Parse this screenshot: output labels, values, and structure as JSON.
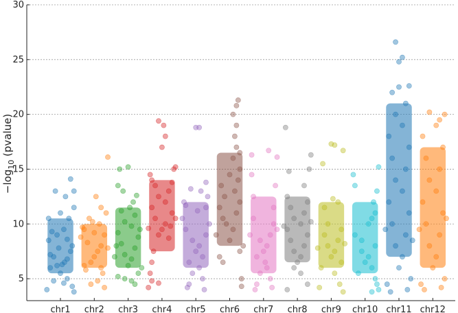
{
  "chart_data": {
    "type": "scatter",
    "title": "",
    "xlabel": "",
    "ylabel": {
      "base": "−log",
      "sub": "10",
      "rest": " (pvalue)"
    },
    "ylim": [
      3,
      30
    ],
    "yticks": [
      5,
      10,
      15,
      20,
      25,
      30
    ],
    "grid": "horizontal dotted",
    "legend": "none",
    "categories": [
      "chr1",
      "chr2",
      "chr3",
      "chr4",
      "chr5",
      "chr6",
      "chr7",
      "chr8",
      "chr9",
      "chr10",
      "chr11",
      "chr12"
    ],
    "series": [
      {
        "label": "chr1",
        "color": "#1f77b4",
        "points": [
          [
            0.05,
            6.3
          ],
          [
            0.12,
            6.5
          ],
          [
            -0.1,
            6.2
          ],
          [
            0.2,
            6.8
          ],
          [
            -0.2,
            7.0
          ],
          [
            0.3,
            7.5
          ],
          [
            -0.3,
            6.0
          ],
          [
            0.35,
            8.0
          ],
          [
            -0.35,
            8.5
          ],
          [
            0.1,
            9.5
          ],
          [
            -0.1,
            9.0
          ],
          [
            0.25,
            10.5
          ],
          [
            -0.25,
            9.3
          ],
          [
            0.4,
            11.5
          ],
          [
            0.15,
            12.5
          ],
          [
            0.4,
            13.0
          ],
          [
            -0.15,
            13.0
          ],
          [
            0.3,
            14.1
          ],
          [
            -0.35,
            10.5
          ],
          [
            0.0,
            5.5
          ],
          [
            0.2,
            5.0
          ],
          [
            -0.2,
            4.8
          ],
          [
            0.35,
            4.3
          ],
          [
            -0.4,
            4.0
          ],
          [
            0.1,
            4.6
          ],
          [
            0.4,
            3.8
          ],
          [
            -0.05,
            7.8
          ],
          [
            0.2,
            8.6
          ],
          [
            -0.3,
            7.2
          ],
          [
            0.0,
            11.0
          ]
        ]
      },
      {
        "label": "chr2",
        "color": "#ff7f0e",
        "points": [
          [
            0.0,
            7.0
          ],
          [
            0.1,
            7.5
          ],
          [
            -0.1,
            6.5
          ],
          [
            0.2,
            8.0
          ],
          [
            -0.2,
            8.3
          ],
          [
            0.3,
            9.0
          ],
          [
            -0.3,
            9.5
          ],
          [
            0.15,
            10.0
          ],
          [
            -0.15,
            10.5
          ],
          [
            0.35,
            11.0
          ],
          [
            -0.35,
            9.7
          ],
          [
            0.05,
            12.5
          ],
          [
            0.2,
            11.5
          ],
          [
            0.4,
            16.1
          ],
          [
            -0.25,
            5.8
          ],
          [
            0.25,
            5.5
          ],
          [
            0.1,
            4.8
          ],
          [
            -0.1,
            4.5
          ],
          [
            0.3,
            4.2
          ],
          [
            -0.3,
            6.2
          ],
          [
            0.4,
            7.8
          ],
          [
            -0.4,
            8.8
          ],
          [
            0.0,
            9.2
          ],
          [
            0.2,
            6.0
          ],
          [
            -0.05,
            10.2
          ]
        ]
      },
      {
        "label": "chr3",
        "color": "#2ca02c",
        "points": [
          [
            0.0,
            6.2
          ],
          [
            0.1,
            6.8
          ],
          [
            -0.1,
            7.2
          ],
          [
            0.2,
            7.8
          ],
          [
            -0.2,
            8.2
          ],
          [
            0.3,
            8.8
          ],
          [
            -0.3,
            9.2
          ],
          [
            0.1,
            9.8
          ],
          [
            -0.1,
            10.2
          ],
          [
            0.2,
            10.8
          ],
          [
            -0.2,
            11.2
          ],
          [
            0.15,
            12.0
          ],
          [
            -0.15,
            13.0
          ],
          [
            0.25,
            12.6
          ],
          [
            -0.3,
            13.5
          ],
          [
            0.0,
            15.2
          ],
          [
            -0.25,
            15.0
          ],
          [
            0.3,
            5.5
          ],
          [
            -0.3,
            5.2
          ],
          [
            0.1,
            4.8
          ],
          [
            0.2,
            4.5
          ],
          [
            -0.1,
            5.0
          ],
          [
            0.4,
            6.0
          ],
          [
            -0.4,
            7.0
          ],
          [
            0.35,
            9.5
          ],
          [
            -0.35,
            8.0
          ],
          [
            0.05,
            11.5
          ]
        ]
      },
      {
        "label": "chr4",
        "color": "#d62728",
        "points": [
          [
            0.0,
            9.5
          ],
          [
            0.1,
            10.0
          ],
          [
            -0.1,
            9.0
          ],
          [
            0.2,
            8.7
          ],
          [
            -0.2,
            10.5
          ],
          [
            0.3,
            11.0
          ],
          [
            -0.3,
            11.5
          ],
          [
            0.1,
            12.0
          ],
          [
            -0.1,
            12.5
          ],
          [
            0.2,
            13.0
          ],
          [
            -0.2,
            13.5
          ],
          [
            0.3,
            13.8
          ],
          [
            -0.3,
            14.0
          ],
          [
            0.0,
            17.0
          ],
          [
            0.1,
            18.0
          ],
          [
            -0.1,
            19.4
          ],
          [
            0.05,
            19.0
          ],
          [
            0.35,
            15.0
          ],
          [
            -0.35,
            14.5
          ],
          [
            0.4,
            15.2
          ],
          [
            -0.25,
            7.5
          ],
          [
            -0.3,
            6.5
          ],
          [
            -0.35,
            5.5
          ],
          [
            -0.3,
            4.8
          ],
          [
            -0.4,
            4.2
          ],
          [
            -0.1,
            4.6
          ],
          [
            0.25,
            9.8
          ],
          [
            0.4,
            10.5
          ],
          [
            -0.4,
            9.6
          ]
        ]
      },
      {
        "label": "chr5",
        "color": "#9467bd",
        "points": [
          [
            0.0,
            7.5
          ],
          [
            0.1,
            8.0
          ],
          [
            -0.1,
            8.5
          ],
          [
            0.2,
            7.0
          ],
          [
            -0.2,
            6.5
          ],
          [
            0.3,
            9.0
          ],
          [
            -0.3,
            9.5
          ],
          [
            0.1,
            6.0
          ],
          [
            -0.1,
            5.5
          ],
          [
            0.2,
            5.0
          ],
          [
            -0.2,
            4.5
          ],
          [
            0.3,
            11.5
          ],
          [
            -0.3,
            11.7
          ],
          [
            0.35,
            12.5
          ],
          [
            -0.35,
            12.0
          ],
          [
            0.15,
            13.0
          ],
          [
            -0.15,
            13.2
          ],
          [
            0.3,
            13.8
          ],
          [
            0.0,
            18.8
          ],
          [
            0.1,
            18.8
          ],
          [
            -0.4,
            10.5
          ],
          [
            0.4,
            10.0
          ],
          [
            -0.25,
            4.2
          ],
          [
            0.25,
            4.0
          ],
          [
            0.05,
            11.2
          ]
        ]
      },
      {
        "label": "chr6",
        "color": "#8c564b",
        "points": [
          [
            0.0,
            8.5
          ],
          [
            0.1,
            9.5
          ],
          [
            -0.1,
            10.0
          ],
          [
            0.2,
            11.0
          ],
          [
            -0.2,
            10.5
          ],
          [
            0.3,
            12.0
          ],
          [
            -0.3,
            11.5
          ],
          [
            0.15,
            13.0
          ],
          [
            -0.15,
            12.5
          ],
          [
            0.25,
            14.0
          ],
          [
            -0.25,
            13.5
          ],
          [
            0.3,
            15.0
          ],
          [
            0.1,
            16.0
          ],
          [
            0.2,
            17.0
          ],
          [
            0.15,
            18.0
          ],
          [
            0.2,
            19.0
          ],
          [
            0.1,
            20.0
          ],
          [
            0.25,
            21.3
          ],
          [
            0.2,
            20.8
          ],
          [
            0.3,
            16.5
          ],
          [
            -0.3,
            7.0
          ],
          [
            -0.2,
            6.5
          ],
          [
            0.3,
            7.5
          ],
          [
            0.35,
            5.0
          ],
          [
            0.35,
            4.3
          ],
          [
            0.4,
            8.0
          ],
          [
            -0.4,
            9.0
          ],
          [
            0.0,
            14.5
          ]
        ]
      },
      {
        "label": "chr7",
        "color": "#e377c2",
        "points": [
          [
            0.0,
            7.5
          ],
          [
            0.1,
            8.0
          ],
          [
            -0.1,
            8.5
          ],
          [
            0.2,
            9.0
          ],
          [
            -0.2,
            7.0
          ],
          [
            0.3,
            10.0
          ],
          [
            -0.3,
            10.5
          ],
          [
            0.1,
            6.0
          ],
          [
            -0.1,
            5.5
          ],
          [
            0.2,
            5.0
          ],
          [
            -0.2,
            4.5
          ],
          [
            0.3,
            11.5
          ],
          [
            -0.3,
            12.5
          ],
          [
            0.35,
            13.5
          ],
          [
            -0.35,
            14.5
          ],
          [
            0.15,
            16.7
          ],
          [
            -0.35,
            16.3
          ],
          [
            0.4,
            16.1
          ],
          [
            0.4,
            9.5
          ],
          [
            -0.4,
            9.0
          ],
          [
            0.25,
            4.2
          ],
          [
            -0.25,
            4.0
          ],
          [
            0.05,
            6.5
          ]
        ]
      },
      {
        "label": "chr8",
        "color": "#7f7f7f",
        "points": [
          [
            0.0,
            6.5
          ],
          [
            0.1,
            7.0
          ],
          [
            -0.1,
            7.5
          ],
          [
            0.2,
            8.0
          ],
          [
            -0.2,
            8.5
          ],
          [
            0.3,
            9.0
          ],
          [
            -0.3,
            9.5
          ],
          [
            0.1,
            10.0
          ],
          [
            -0.1,
            10.5
          ],
          [
            0.2,
            11.0
          ],
          [
            -0.2,
            11.5
          ],
          [
            0.3,
            12.0
          ],
          [
            -0.3,
            12.5
          ],
          [
            0.2,
            13.5
          ],
          [
            -0.25,
            14.8
          ],
          [
            0.35,
            15.0
          ],
          [
            0.4,
            16.3
          ],
          [
            -0.35,
            18.8
          ],
          [
            0.3,
            4.5
          ],
          [
            -0.3,
            4.0
          ],
          [
            0.1,
            5.5
          ],
          [
            -0.1,
            6.0
          ],
          [
            0.4,
            10.2
          ],
          [
            -0.4,
            9.8
          ]
        ]
      },
      {
        "label": "chr9",
        "color": "#bcbd22",
        "points": [
          [
            0.0,
            7.0
          ],
          [
            0.1,
            7.5
          ],
          [
            -0.1,
            8.0
          ],
          [
            0.2,
            8.5
          ],
          [
            -0.2,
            9.0
          ],
          [
            0.3,
            6.5
          ],
          [
            -0.3,
            6.0
          ],
          [
            0.1,
            5.5
          ],
          [
            -0.1,
            10.0
          ],
          [
            0.2,
            12.0
          ],
          [
            -0.2,
            11.5
          ],
          [
            0.3,
            9.5
          ],
          [
            0.0,
            17.3
          ],
          [
            0.1,
            17.2
          ],
          [
            0.35,
            16.7
          ],
          [
            -0.25,
            15.5
          ],
          [
            0.25,
            4.5
          ],
          [
            -0.35,
            4.2
          ],
          [
            0.35,
            3.8
          ],
          [
            0.4,
            8.2
          ],
          [
            -0.4,
            7.8
          ],
          [
            0.05,
            12.3
          ]
        ]
      },
      {
        "label": "chr10",
        "color": "#17becf",
        "points": [
          [
            0.0,
            6.5
          ],
          [
            0.1,
            7.0
          ],
          [
            -0.1,
            7.5
          ],
          [
            0.2,
            6.0
          ],
          [
            -0.2,
            5.5
          ],
          [
            0.3,
            8.0
          ],
          [
            -0.3,
            9.0
          ],
          [
            0.1,
            10.0
          ],
          [
            0.2,
            10.5
          ],
          [
            0.3,
            11.0
          ],
          [
            0.25,
            12.0
          ],
          [
            0.35,
            13.0
          ],
          [
            -0.35,
            14.5
          ],
          [
            0.4,
            15.2
          ],
          [
            0.3,
            5.0
          ],
          [
            0.35,
            4.5
          ],
          [
            0.4,
            4.0
          ],
          [
            -0.3,
            13.5
          ],
          [
            0.2,
            3.8
          ],
          [
            -0.1,
            8.5
          ]
        ]
      },
      {
        "label": "chr11",
        "color": "#1f77b4",
        "points": [
          [
            0.0,
            6.0
          ],
          [
            0.1,
            7.0
          ],
          [
            -0.1,
            8.0
          ],
          [
            0.2,
            9.0
          ],
          [
            -0.2,
            10.0
          ],
          [
            0.3,
            11.0
          ],
          [
            -0.3,
            12.0
          ],
          [
            0.1,
            13.0
          ],
          [
            -0.1,
            14.0
          ],
          [
            0.2,
            15.0
          ],
          [
            -0.2,
            16.0
          ],
          [
            0.3,
            17.0
          ],
          [
            -0.3,
            18.0
          ],
          [
            0.1,
            19.0
          ],
          [
            -0.1,
            20.0
          ],
          [
            0.2,
            21.0
          ],
          [
            -0.2,
            22.0
          ],
          [
            0.0,
            22.5
          ],
          [
            0.3,
            22.6
          ],
          [
            -0.1,
            26.6
          ],
          [
            0.1,
            25.2
          ],
          [
            0.0,
            24.8
          ],
          [
            0.35,
            5.0
          ],
          [
            -0.35,
            4.5
          ],
          [
            0.25,
            4.0
          ],
          [
            -0.25,
            3.8
          ],
          [
            0.4,
            8.5
          ],
          [
            -0.4,
            9.5
          ]
        ]
      },
      {
        "label": "chr12",
        "color": "#ff7f0e",
        "points": [
          [
            0.0,
            6.0
          ],
          [
            0.1,
            7.0
          ],
          [
            -0.1,
            8.0
          ],
          [
            0.2,
            9.0
          ],
          [
            -0.2,
            10.0
          ],
          [
            0.3,
            11.0
          ],
          [
            -0.3,
            12.0
          ],
          [
            0.1,
            13.0
          ],
          [
            -0.1,
            14.0
          ],
          [
            0.2,
            15.0
          ],
          [
            -0.2,
            16.0
          ],
          [
            0.3,
            17.0
          ],
          [
            -0.3,
            18.0
          ],
          [
            0.1,
            19.0
          ],
          [
            0.2,
            19.5
          ],
          [
            -0.1,
            20.2
          ],
          [
            0.35,
            20.0
          ],
          [
            0.35,
            5.0
          ],
          [
            -0.35,
            4.5
          ],
          [
            0.25,
            4.2
          ],
          [
            -0.25,
            4.0
          ],
          [
            0.4,
            10.5
          ],
          [
            -0.4,
            9.5
          ]
        ]
      }
    ]
  }
}
